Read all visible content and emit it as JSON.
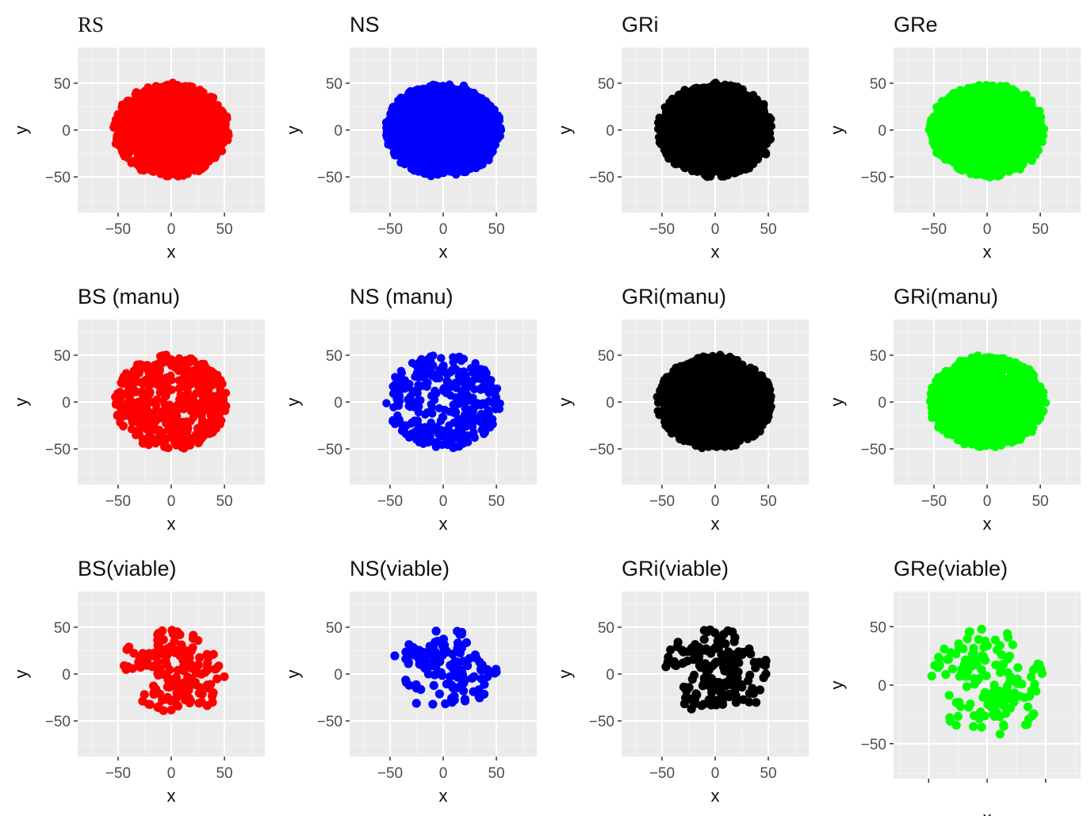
{
  "chart_data": [
    {
      "type": "scatter",
      "title": "RS",
      "xlabel": "x",
      "ylabel": "y",
      "color": "#ff0000",
      "xlim": [
        -88,
        88
      ],
      "ylim": [
        -88,
        88
      ],
      "xticks": [
        -50,
        0,
        50
      ],
      "yticks": [
        50,
        0,
        -50
      ],
      "xtick_labels": [
        "−50",
        "0",
        "50"
      ],
      "ytick_labels": [
        "50",
        "0",
        "−50"
      ],
      "grid": true,
      "density": "dense",
      "count": 1500,
      "radius": 52,
      "scale_x": 1.0,
      "scale_y": 1.0,
      "seed": 11
    },
    {
      "type": "scatter",
      "title": "NS",
      "xlabel": "x",
      "ylabel": "y",
      "color": "#0000ff",
      "xlim": [
        -88,
        88
      ],
      "ylim": [
        -88,
        88
      ],
      "xticks": [
        -50,
        0,
        50
      ],
      "yticks": [
        50,
        0,
        -50
      ],
      "xtick_labels": [
        "−50",
        "0",
        "50"
      ],
      "ytick_labels": [
        "50",
        "0",
        "−50"
      ],
      "grid": true,
      "density": "dense",
      "count": 1500,
      "radius": 52,
      "scale_x": 1.0,
      "scale_y": 1.0,
      "seed": 12
    },
    {
      "type": "scatter",
      "title": "GRi",
      "xlabel": "x",
      "ylabel": "y",
      "color": "#000000",
      "xlim": [
        -88,
        88
      ],
      "ylim": [
        -88,
        88
      ],
      "xticks": [
        -50,
        0,
        50
      ],
      "yticks": [
        50,
        0,
        -50
      ],
      "xtick_labels": [
        "−50",
        "0",
        "50"
      ],
      "ytick_labels": [
        "50",
        "0",
        "−50"
      ],
      "grid": true,
      "density": "dense",
      "count": 1500,
      "radius": 52,
      "scale_x": 1.0,
      "scale_y": 1.0,
      "seed": 13
    },
    {
      "type": "scatter",
      "title": "GRe",
      "xlabel": "x",
      "ylabel": "y",
      "color": "#00ff00",
      "xlim": [
        -88,
        88
      ],
      "ylim": [
        -88,
        88
      ],
      "xticks": [
        -50,
        0,
        50
      ],
      "yticks": [
        50,
        0,
        -50
      ],
      "xtick_labels": [
        "−50",
        "0",
        "50"
      ],
      "ytick_labels": [
        "50",
        "0",
        "−50"
      ],
      "grid": true,
      "density": "dense",
      "count": 1500,
      "radius": 52,
      "scale_x": 1.0,
      "scale_y": 1.0,
      "seed": 14
    },
    {
      "type": "scatter",
      "title": "BS (manu)",
      "xlabel": "x",
      "ylabel": "y",
      "color": "#ff0000",
      "xlim": [
        -88,
        88
      ],
      "ylim": [
        -88,
        88
      ],
      "xticks": [
        -50,
        0,
        50
      ],
      "yticks": [
        50,
        0,
        -50
      ],
      "xtick_labels": [
        "−50",
        "0",
        "50"
      ],
      "ytick_labels": [
        "50",
        "0",
        "−50"
      ],
      "grid": true,
      "density": "medium",
      "count": 520,
      "radius": 51,
      "scale_x": 1.0,
      "scale_y": 1.0,
      "seed": 21
    },
    {
      "type": "scatter",
      "title": "NS (manu)",
      "xlabel": "x",
      "ylabel": "y",
      "color": "#0000ff",
      "xlim": [
        -88,
        88
      ],
      "ylim": [
        -88,
        88
      ],
      "xticks": [
        -50,
        0,
        50
      ],
      "yticks": [
        50,
        0,
        -50
      ],
      "xtick_labels": [
        "−50",
        "0",
        "50"
      ],
      "ytick_labels": [
        "50",
        "0",
        "−50"
      ],
      "grid": true,
      "density": "medium",
      "count": 340,
      "radius": 51,
      "scale_x": 1.0,
      "scale_y": 1.0,
      "seed": 22
    },
    {
      "type": "scatter",
      "title": "GRi(manu)",
      "xlabel": "x",
      "ylabel": "y",
      "color": "#000000",
      "xlim": [
        -88,
        88
      ],
      "ylim": [
        -88,
        88
      ],
      "xticks": [
        -50,
        0,
        50
      ],
      "yticks": [
        50,
        0,
        -50
      ],
      "xtick_labels": [
        "−50",
        "0",
        "50"
      ],
      "ytick_labels": [
        "50",
        "0",
        "−50"
      ],
      "grid": true,
      "density": "dense",
      "count": 1500,
      "radius": 52,
      "scale_x": 1.0,
      "scale_y": 1.0,
      "seed": 23
    },
    {
      "type": "scatter",
      "title": "GRi(manu)",
      "xlabel": "x",
      "ylabel": "y",
      "color": "#00ff00",
      "xlim": [
        -88,
        88
      ],
      "ylim": [
        -88,
        88
      ],
      "xticks": [
        -50,
        0,
        50
      ],
      "yticks": [
        50,
        0,
        -50
      ],
      "xtick_labels": [
        "−50",
        "0",
        "50"
      ],
      "ytick_labels": [
        "50",
        "0",
        "−50"
      ],
      "grid": true,
      "density": "dense",
      "count": 1500,
      "radius": 52,
      "scale_x": 1.0,
      "scale_y": 1.0,
      "seed": 24
    },
    {
      "type": "scatter",
      "title": "BS(viable)",
      "xlabel": "x",
      "ylabel": "y",
      "color": "#ff0000",
      "xlim": [
        -88,
        88
      ],
      "ylim": [
        -88,
        88
      ],
      "xticks": [
        -50,
        0,
        50
      ],
      "yticks": [
        50,
        0,
        -50
      ],
      "xtick_labels": [
        "−50",
        "0",
        "50"
      ],
      "ytick_labels": [
        "50",
        "0",
        "−50"
      ],
      "grid": true,
      "density": "sparse",
      "count": 170,
      "radius": 50,
      "scale_x": 1.0,
      "scale_y": 0.95,
      "seed": 31
    },
    {
      "type": "scatter",
      "title": "NS(viable)",
      "xlabel": "x",
      "ylabel": "y",
      "color": "#0000ff",
      "xlim": [
        -88,
        88
      ],
      "ylim": [
        -88,
        88
      ],
      "xticks": [
        -50,
        0,
        50
      ],
      "yticks": [
        50,
        0,
        -50
      ],
      "xtick_labels": [
        "−50",
        "0",
        "50"
      ],
      "ytick_labels": [
        "50",
        "0",
        "−50"
      ],
      "grid": true,
      "density": "sparse",
      "count": 120,
      "radius": 50,
      "scale_x": 1.0,
      "scale_y": 0.95,
      "seed": 32
    },
    {
      "type": "scatter",
      "title": "GRi(viable)",
      "xlabel": "x",
      "ylabel": "y",
      "color": "#000000",
      "xlim": [
        -88,
        88
      ],
      "ylim": [
        -88,
        88
      ],
      "xticks": [
        -50,
        0,
        50
      ],
      "yticks": [
        50,
        0,
        -50
      ],
      "xtick_labels": [
        "−50",
        "0",
        "50"
      ],
      "ytick_labels": [
        "50",
        "0",
        "−50"
      ],
      "grid": true,
      "density": "sparse",
      "count": 170,
      "radius": 50,
      "scale_x": 1.0,
      "scale_y": 0.95,
      "seed": 33
    },
    {
      "type": "scatter",
      "title": "GRe(viable)",
      "xlabel": "x",
      "ylabel": "y",
      "color": "#00ff00",
      "xlim": [
        -80,
        80
      ],
      "ylim": [
        -80,
        80
      ],
      "xticks": [
        -50,
        0,
        50
      ],
      "yticks": [
        50,
        0,
        -50
      ],
      "xtick_labels": [
        "",
        "",
        ""
      ],
      "ytick_labels": [
        "50",
        "0",
        "−50"
      ],
      "grid": true,
      "density": "sparse",
      "count": 150,
      "radius": 48,
      "scale_x": 1.0,
      "scale_y": 1.0,
      "seed": 34
    }
  ]
}
